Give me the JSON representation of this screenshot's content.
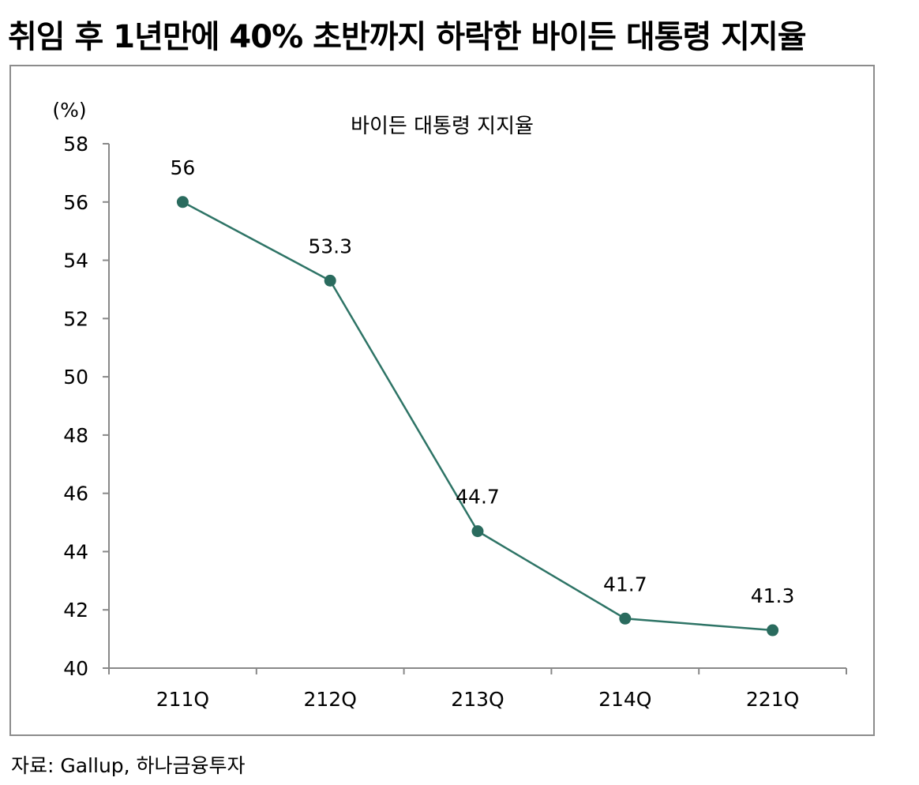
{
  "headline": "취임 후 1년만에 40% 초반까지 하락한 바이든 대통령 지지율",
  "source": "자료: Gallup, 하나금융투자",
  "chart_data": {
    "type": "line",
    "title": "바이든 대통령 지지율",
    "ylabel": "(%)",
    "xlabel": "",
    "categories": [
      "211Q",
      "212Q",
      "213Q",
      "214Q",
      "221Q"
    ],
    "series": [
      {
        "values": [
          56,
          53.3,
          44.7,
          41.7,
          41.3
        ]
      }
    ],
    "data_labels": [
      "56",
      "53.3",
      "44.7",
      "41.7",
      "41.3"
    ],
    "ylim": [
      40,
      58
    ],
    "yticks": [
      40,
      42,
      44,
      46,
      48,
      50,
      52,
      54,
      56,
      58
    ],
    "grid": false,
    "legend": "none",
    "line_color": "#2e7466",
    "marker_color": "#2a6b5e"
  }
}
